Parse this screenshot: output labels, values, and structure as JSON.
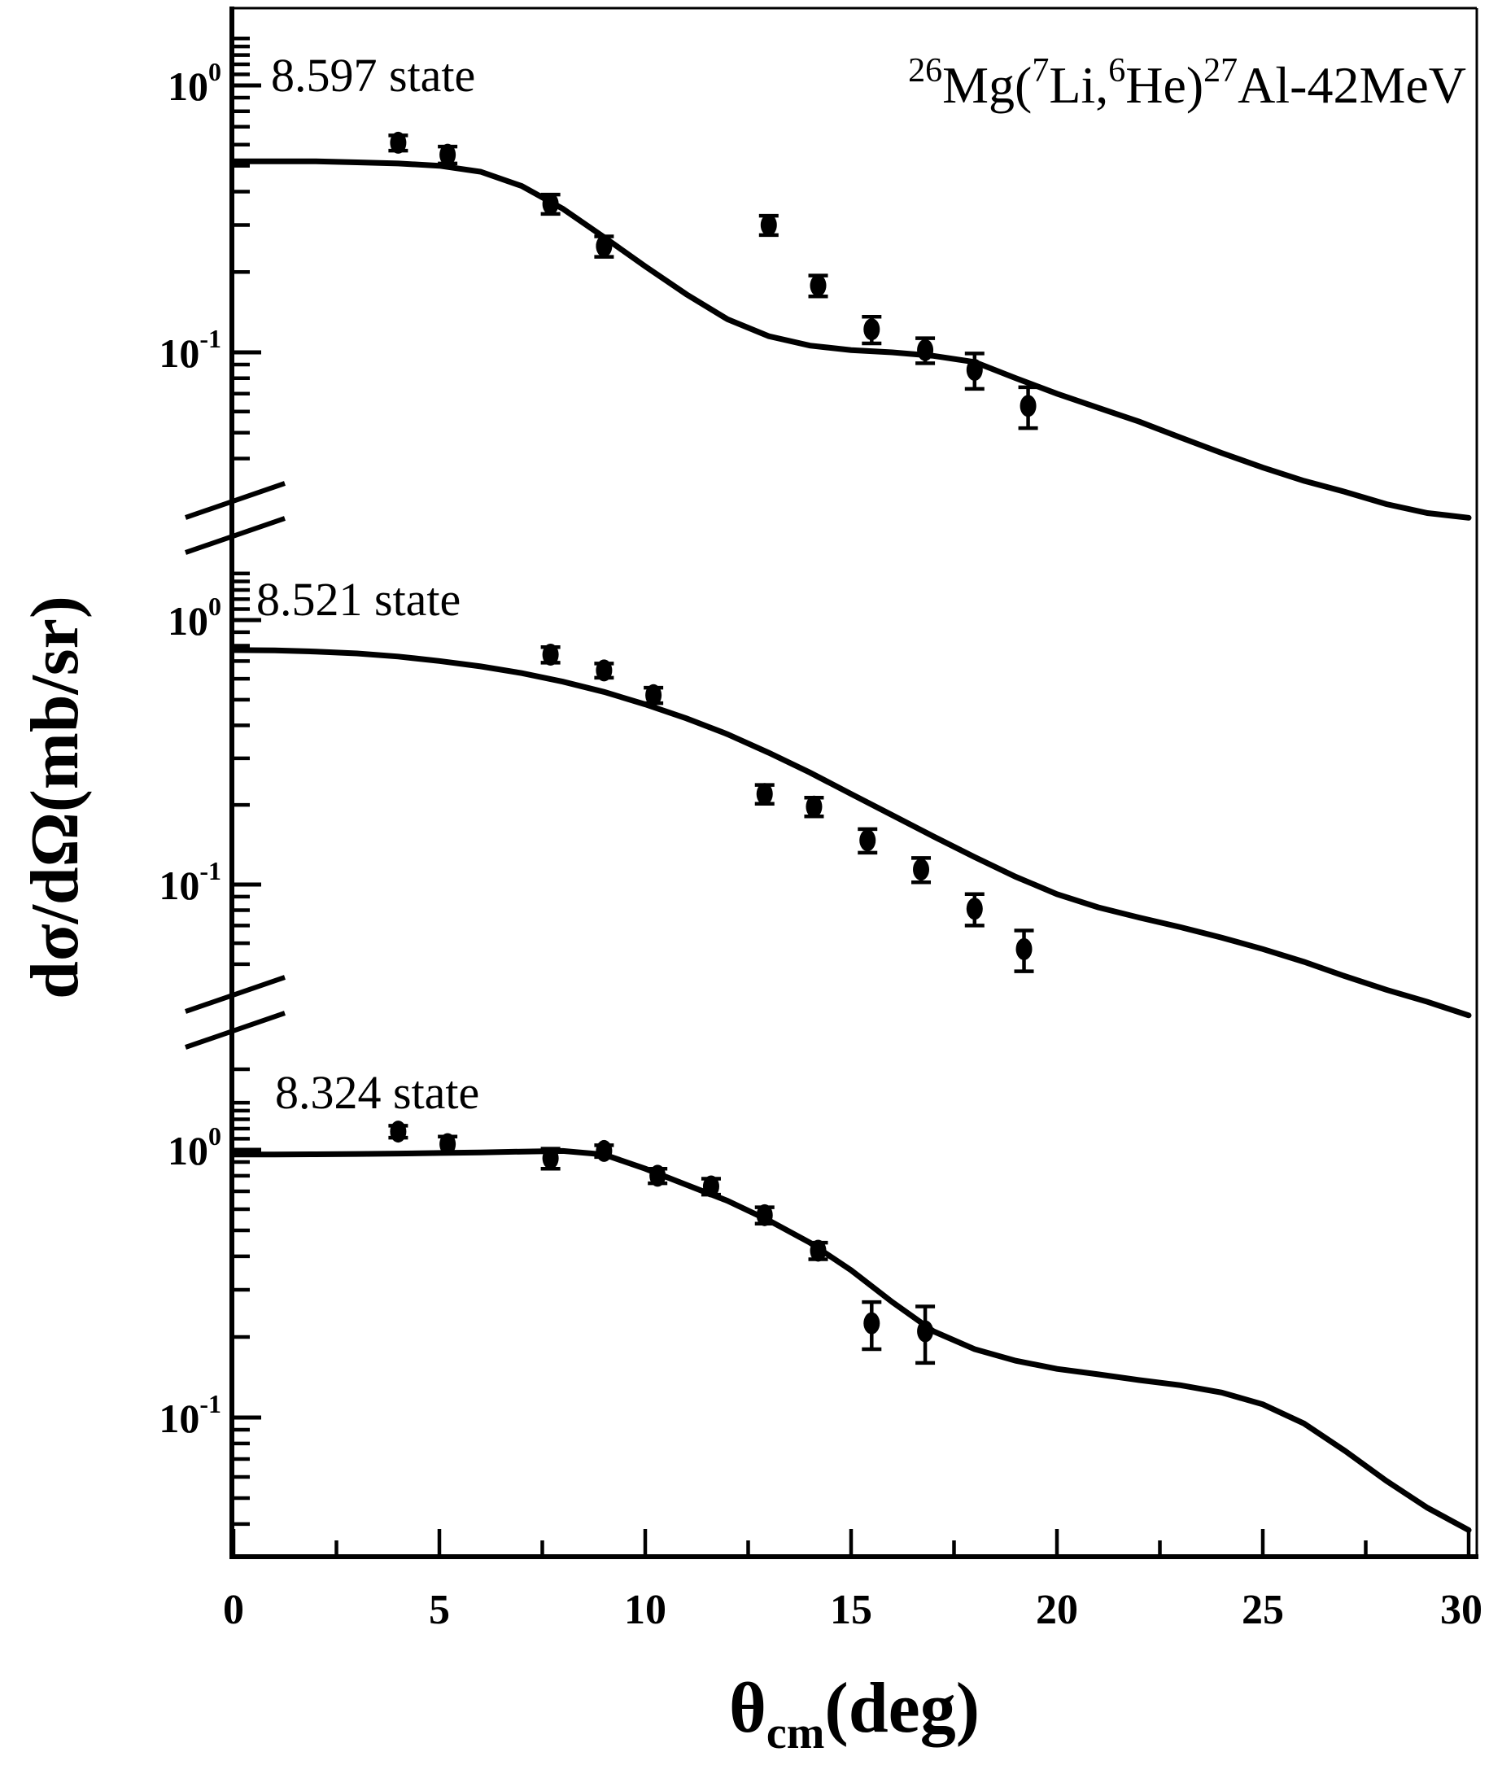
{
  "figure": {
    "ylabel": "dσ/dΩ(mb/sr)",
    "title_segments": [
      {
        "sup": "26"
      },
      {
        "t": "Mg("
      },
      {
        "sup": "7"
      },
      {
        "t": "Li,"
      },
      {
        "sup": "6"
      },
      {
        "t": "He)"
      },
      {
        "sup": "27"
      },
      {
        "t": "Al-42MeV"
      }
    ],
    "xlabel_segments": [
      {
        "t": "θ"
      },
      {
        "sub": "cm"
      },
      {
        "t": "(deg)"
      }
    ]
  },
  "chart_data": {
    "type": "scatter",
    "title": "26Mg(7Li,6He)27Al-42MeV",
    "xlabel": "theta_cm (deg)",
    "ylabel": "dsigma/dOmega (mb/sr)",
    "xlim": [
      0,
      30
    ],
    "x_major_ticks": [
      0,
      5,
      10,
      15,
      20,
      25,
      30
    ],
    "x_minor_ticks": [
      2.5,
      7.5,
      12.5,
      17.5,
      22.5,
      27.5
    ],
    "y_scale": "log, broken axis with three stacked panels",
    "y_major_tick_labels": [
      {
        "mantissa": "10",
        "exponent": "0",
        "value": 1.0
      },
      {
        "mantissa": "10",
        "exponent": "-1",
        "value": 0.1
      }
    ],
    "legend": "filled circles with error bars = data; solid line = theoretical curve",
    "panels": [
      {
        "state_label": "8.597 state",
        "ylim": [
          0.031,
          1.95
        ],
        "data_points": {
          "theta_deg": [
            4.0,
            5.2,
            7.7,
            9.0,
            13.0,
            14.2,
            15.5,
            16.8,
            18.0,
            19.3
          ],
          "dsigma_mb_sr": [
            0.61,
            0.55,
            0.36,
            0.25,
            0.3,
            0.178,
            0.122,
            0.102,
            0.086,
            0.063
          ],
          "error_mb_sr": [
            0.04,
            0.04,
            0.03,
            0.022,
            0.025,
            0.016,
            0.014,
            0.011,
            0.013,
            0.011
          ]
        },
        "theory_curve": {
          "theta_deg": [
            0,
            1,
            2,
            3,
            4,
            5,
            6,
            7,
            8,
            9,
            10,
            11,
            12,
            13,
            14,
            15,
            16,
            17,
            18,
            19,
            20,
            21,
            22,
            23,
            24,
            25,
            26,
            27,
            28,
            29,
            30
          ],
          "dsigma_mb_sr": [
            0.52,
            0.52,
            0.52,
            0.515,
            0.51,
            0.5,
            0.475,
            0.42,
            0.345,
            0.27,
            0.21,
            0.165,
            0.133,
            0.115,
            0.106,
            0.102,
            0.1,
            0.097,
            0.092,
            0.08,
            0.07,
            0.062,
            0.055,
            0.048,
            0.042,
            0.037,
            0.033,
            0.03,
            0.027,
            0.025,
            0.024
          ]
        }
      },
      {
        "state_label": "8.521 state",
        "ylim": [
          0.037,
          1.95
        ],
        "data_points": {
          "theta_deg": [
            7.7,
            9.0,
            10.2,
            12.9,
            14.1,
            15.4,
            16.7,
            18.0,
            19.2
          ],
          "dsigma_mb_sr": [
            0.74,
            0.645,
            0.52,
            0.22,
            0.197,
            0.147,
            0.114,
            0.081,
            0.057
          ],
          "error_mb_sr": [
            0.05,
            0.04,
            0.035,
            0.018,
            0.016,
            0.015,
            0.012,
            0.011,
            0.01
          ]
        },
        "theory_curve": {
          "theta_deg": [
            0,
            1,
            2,
            3,
            4,
            5,
            6,
            7,
            8,
            9,
            10,
            11,
            12,
            13,
            14,
            15,
            16,
            17,
            18,
            19,
            20,
            21,
            22,
            23,
            24,
            25,
            26,
            27,
            28,
            29,
            30
          ],
          "dsigma_mb_sr": [
            0.77,
            0.768,
            0.76,
            0.748,
            0.728,
            0.7,
            0.668,
            0.63,
            0.585,
            0.535,
            0.48,
            0.425,
            0.37,
            0.315,
            0.265,
            0.22,
            0.183,
            0.152,
            0.127,
            0.107,
            0.092,
            0.082,
            0.075,
            0.069,
            0.063,
            0.057,
            0.051,
            0.045,
            0.04,
            0.036,
            0.032
          ]
        }
      },
      {
        "state_label": "8.324 state",
        "ylim": [
          0.03,
          2.0
        ],
        "data_points": {
          "theta_deg": [
            4.0,
            5.2,
            7.7,
            9.0,
            10.3,
            11.6,
            12.9,
            14.2,
            15.5,
            16.8
          ],
          "dsigma_mb_sr": [
            1.17,
            1.05,
            0.93,
            0.99,
            0.8,
            0.73,
            0.57,
            0.42,
            0.225,
            0.21
          ],
          "error_mb_sr": [
            0.06,
            0.07,
            0.08,
            0.05,
            0.05,
            0.05,
            0.04,
            0.03,
            0.045,
            0.05
          ]
        },
        "theory_curve": {
          "theta_deg": [
            0,
            1,
            2,
            3,
            4,
            5,
            6,
            7,
            8,
            9,
            10,
            11,
            12,
            13,
            14,
            15,
            16,
            17,
            18,
            19,
            20,
            21,
            22,
            23,
            24,
            25,
            26,
            27,
            28,
            29,
            30
          ],
          "dsigma_mb_sr": [
            0.96,
            0.96,
            0.962,
            0.965,
            0.968,
            0.973,
            0.978,
            0.985,
            0.99,
            0.96,
            0.85,
            0.74,
            0.645,
            0.545,
            0.45,
            0.355,
            0.27,
            0.21,
            0.18,
            0.163,
            0.152,
            0.145,
            0.138,
            0.132,
            0.124,
            0.112,
            0.095,
            0.075,
            0.058,
            0.046,
            0.038
          ]
        }
      }
    ]
  },
  "style": {
    "ink_color": "#000000",
    "background_color": "#ffffff"
  }
}
